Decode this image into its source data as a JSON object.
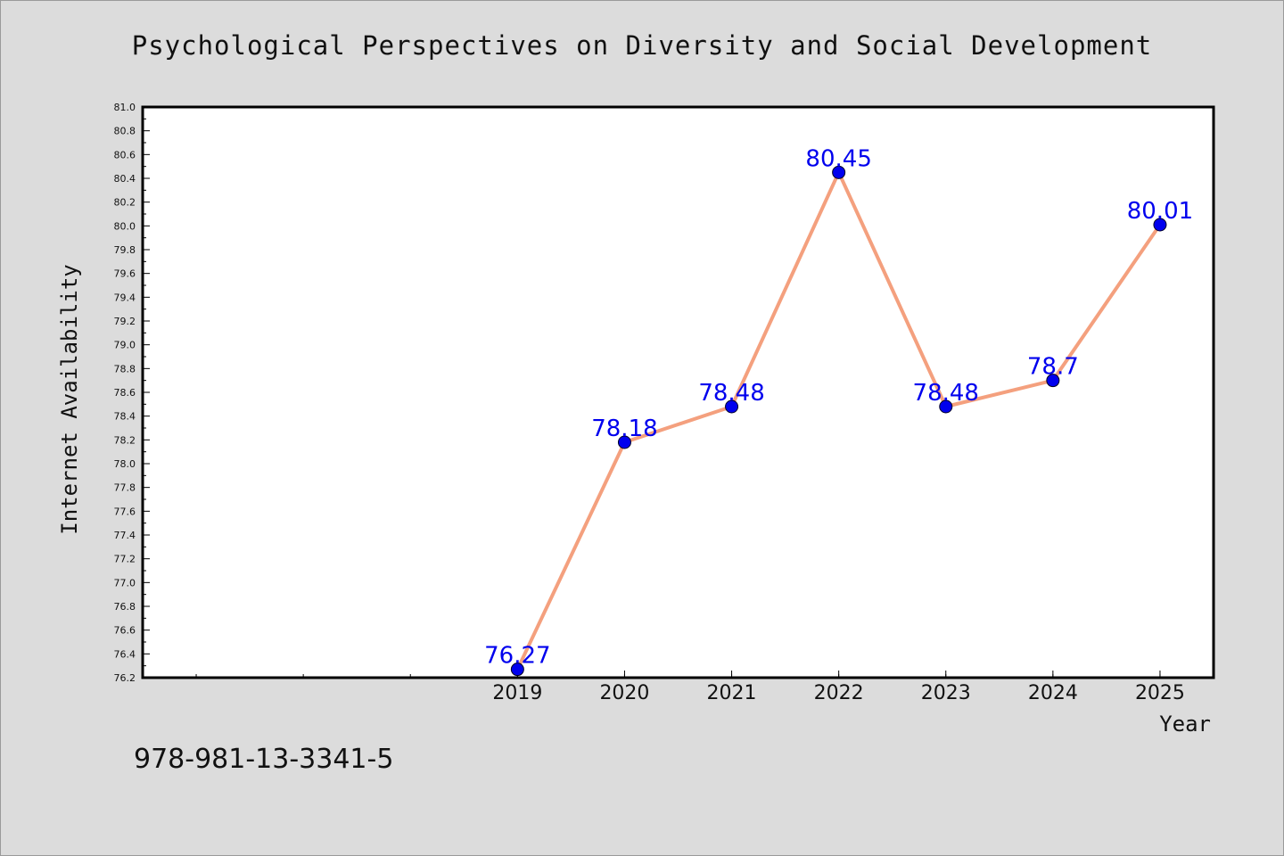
{
  "chart_data": {
    "type": "line",
    "title": "Psychological Perspectives on Diversity and Social Development",
    "xlabel": "Year",
    "ylabel": "Internet Availability",
    "x": [
      "2019",
      "2020",
      "2021",
      "2022",
      "2023",
      "2024",
      "2025"
    ],
    "x_axis_range": [
      2015.5,
      2025.5
    ],
    "series": [
      {
        "values": [
          76.27,
          78.18,
          78.48,
          80.45,
          78.48,
          78.7,
          80.01
        ],
        "labels": [
          "76.27",
          "78.18",
          "78.48",
          "80.45",
          "78.48",
          "78.7",
          "80.01"
        ]
      }
    ],
    "ylim": [
      76.2,
      81.0
    ],
    "y_ticks": [
      "76.2",
      "76.4",
      "76.6",
      "76.8",
      "77.0",
      "77.2",
      "77.4",
      "77.6",
      "77.8",
      "78.0",
      "78.2",
      "78.4",
      "78.6",
      "78.8",
      "79.0",
      "79.2",
      "79.4",
      "79.6",
      "79.8",
      "80.0",
      "80.2",
      "80.4",
      "80.6",
      "80.8",
      "81.0"
    ],
    "grid": false,
    "legend": "none",
    "colors": {
      "line": "#f4a07e",
      "marker": "#0000ee",
      "data_label": "#0000ee",
      "background": "#dcdcdc",
      "plot_background": "#ffffff"
    }
  },
  "footer": {
    "isbn": "978-981-13-3341-5"
  }
}
